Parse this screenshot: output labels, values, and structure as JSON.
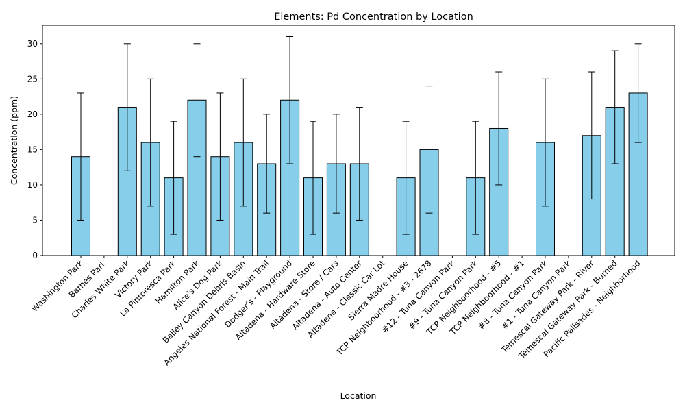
{
  "chart_data": {
    "type": "bar",
    "title": "Elements: Pd Concentration by Location",
    "xlabel": "Location",
    "ylabel": "Concentration (ppm)",
    "ylim": [
      0,
      32.6
    ],
    "yticks": [
      0,
      5,
      10,
      15,
      20,
      25,
      30
    ],
    "bar_color": "#87ceeb",
    "categories": [
      "Washington Park",
      "Barnes Park",
      "Charles White Park",
      "Victory Park",
      "La Pintoresca Park",
      "Hamilton Park",
      "Alice's Dog Park",
      "Bailey Canyon Debris Basin",
      "Angeles National Forest - Main Trail",
      "Dodger's - Playground",
      "Altadena - Hardware Store",
      "Altadena - Store / Cars",
      "Altadena - Auto Center",
      "Altadena - Classic Car Lot",
      "Sierra Madre House",
      "TCP Neighboorhood - #3 - 2678",
      "#12 - Tuna Canyon Park",
      "#9 - Tuna Canyon Park",
      "TCP Neighboorhood - #5",
      "TCP Neighboorhood - #1",
      "#8 - Tuna Canyon Park",
      "#1 - Tuna Canyon Park",
      "Temescal Gateway Park - River",
      "Temescal Gateway Park - Burned",
      "Pacific Palisades - Neighborhood"
    ],
    "values": [
      14,
      null,
      21,
      16,
      11,
      22,
      14,
      16,
      13,
      22,
      11,
      13,
      13,
      null,
      11,
      15,
      null,
      11,
      18,
      null,
      16,
      null,
      17,
      21,
      23
    ],
    "errors": [
      9,
      null,
      9,
      9,
      8,
      8,
      9,
      9,
      7,
      9,
      8,
      7,
      8,
      null,
      8,
      9,
      null,
      8,
      8,
      null,
      9,
      null,
      9,
      8,
      7
    ]
  }
}
